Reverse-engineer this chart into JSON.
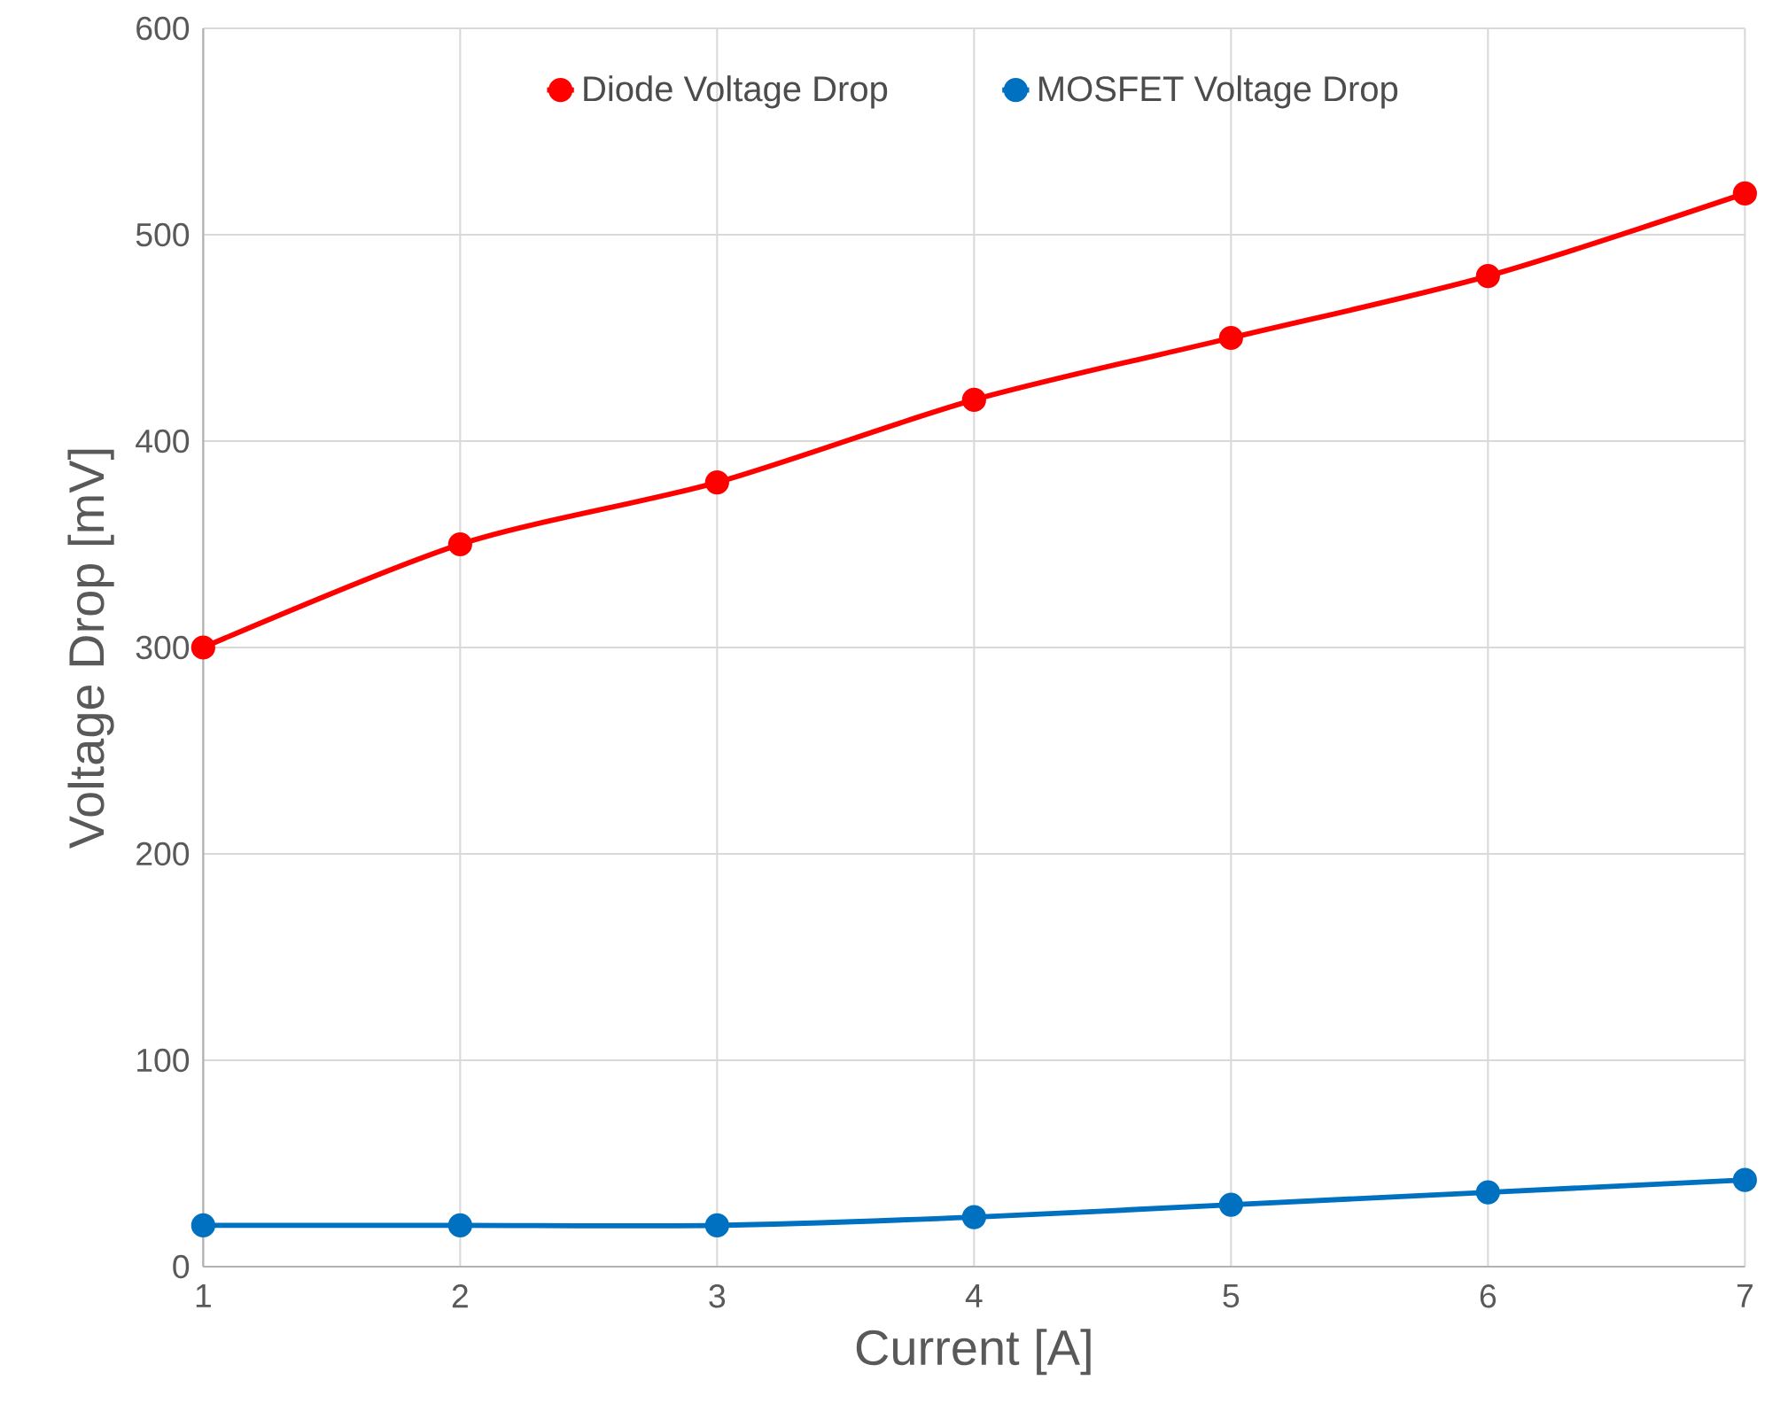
{
  "chart_data": {
    "type": "line",
    "xlabel": "Current [A]",
    "ylabel": "Voltage Drop [mV]",
    "x": [
      1,
      2,
      3,
      4,
      5,
      6,
      7
    ],
    "series": [
      {
        "name": "Diode Voltage Drop",
        "color": "#ff0000",
        "values": [
          300,
          350,
          380,
          420,
          450,
          480,
          520
        ]
      },
      {
        "name": "MOSFET Voltage Drop",
        "color": "#0070c0",
        "values": [
          20,
          20,
          20,
          24,
          30,
          36,
          42
        ]
      }
    ],
    "xlim": [
      1,
      7
    ],
    "xticks": [
      1,
      2,
      3,
      4,
      5,
      6,
      7
    ],
    "ylim": [
      0,
      600
    ],
    "yticks": [
      0,
      100,
      200,
      300,
      400,
      500,
      600
    ],
    "grid": true,
    "legend": "top",
    "marker": "circle",
    "line_style": "solid"
  }
}
